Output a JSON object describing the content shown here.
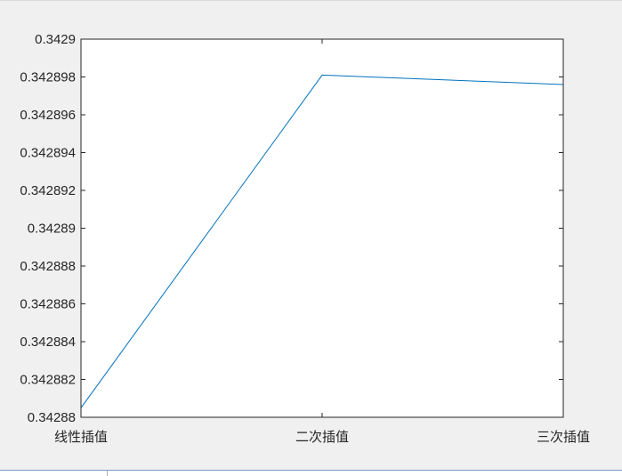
{
  "chart_data": {
    "type": "line",
    "categories": [
      "线性插值",
      "二次插值",
      "三次插值"
    ],
    "series": [
      {
        "values": [
          0.3428805,
          0.3428981,
          0.3428976
        ],
        "color": "#0072bd"
      }
    ],
    "ylim": [
      0.34288,
      0.3429
    ],
    "yticks": [
      0.34288,
      0.342882,
      0.342884,
      0.342886,
      0.342888,
      0.34289,
      0.342892,
      0.342894,
      0.342896,
      0.342898,
      0.3429
    ],
    "ytick_labels": [
      "0.34288",
      "0.342882",
      "0.342884",
      "0.342886",
      "0.342888",
      "0.34289",
      "0.342892",
      "0.342894",
      "0.342896",
      "0.342898",
      "0.3429"
    ],
    "grid": false,
    "title": "",
    "xlabel": "",
    "ylabel": ""
  }
}
